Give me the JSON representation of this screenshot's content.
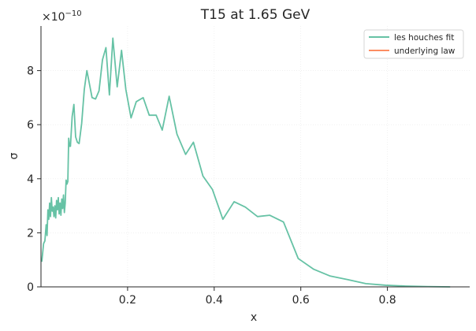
{
  "chart_data": {
    "type": "line",
    "title": "T15 at 1.65 GeV",
    "xlabel": "x",
    "ylabel": "σ",
    "y_offset_label": "×10",
    "y_offset_exponent": "−10",
    "xlim": [
      0.0,
      0.99
    ],
    "ylim": [
      0,
      9.65
    ],
    "x_ticks": [
      0.2,
      0.4,
      0.6,
      0.8
    ],
    "x_tick_labels": [
      "0.2",
      "0.4",
      "0.6",
      "0.8"
    ],
    "y_ticks": [
      0,
      2,
      4,
      6,
      8
    ],
    "y_tick_labels": [
      "0",
      "2",
      "4",
      "6",
      "8"
    ],
    "grid": true,
    "legend_position": "top-right",
    "series": [
      {
        "name": "les houches fit",
        "color": "#66c2a5",
        "x": [
          0.002,
          0.006,
          0.009,
          0.012,
          0.014,
          0.016,
          0.018,
          0.02,
          0.022,
          0.024,
          0.026,
          0.028,
          0.03,
          0.032,
          0.034,
          0.036,
          0.038,
          0.04,
          0.042,
          0.044,
          0.046,
          0.048,
          0.05,
          0.052,
          0.054,
          0.056,
          0.058,
          0.06,
          0.062,
          0.064,
          0.066,
          0.068,
          0.072,
          0.076,
          0.08,
          0.084,
          0.088,
          0.094,
          0.1,
          0.106,
          0.112,
          0.118,
          0.126,
          0.134,
          0.142,
          0.15,
          0.158,
          0.166,
          0.176,
          0.186,
          0.196,
          0.208,
          0.22,
          0.236,
          0.25,
          0.266,
          0.28,
          0.296,
          0.314,
          0.334,
          0.352,
          0.374,
          0.396,
          0.42,
          0.446,
          0.472,
          0.5,
          0.528,
          0.56,
          0.594,
          0.63,
          0.668,
          0.708,
          0.75,
          0.796,
          0.842,
          0.892,
          0.944
        ],
        "values": [
          0.95,
          1.6,
          1.7,
          2.3,
          1.9,
          2.85,
          2.5,
          3.1,
          2.6,
          3.3,
          2.8,
          2.95,
          2.6,
          3.0,
          2.55,
          3.2,
          2.85,
          3.3,
          2.7,
          3.1,
          2.65,
          3.25,
          2.9,
          3.4,
          2.75,
          3.1,
          3.95,
          3.8,
          3.9,
          5.5,
          5.2,
          5.2,
          6.3,
          6.75,
          5.55,
          5.35,
          5.3,
          6.05,
          7.3,
          8.0,
          7.5,
          7.0,
          6.95,
          7.25,
          8.4,
          8.85,
          7.1,
          9.2,
          7.4,
          8.75,
          7.3,
          6.25,
          6.85,
          7.0,
          6.35,
          6.35,
          5.8,
          7.05,
          5.65,
          4.9,
          5.35,
          4.1,
          3.6,
          2.5,
          3.15,
          2.95,
          2.6,
          2.65,
          2.4,
          1.05,
          0.65,
          0.4,
          0.27,
          0.12,
          0.06,
          0.03,
          0.01,
          0.0
        ]
      },
      {
        "name": "underlying law",
        "color": "#fc8d62",
        "x": [],
        "values": []
      }
    ]
  }
}
